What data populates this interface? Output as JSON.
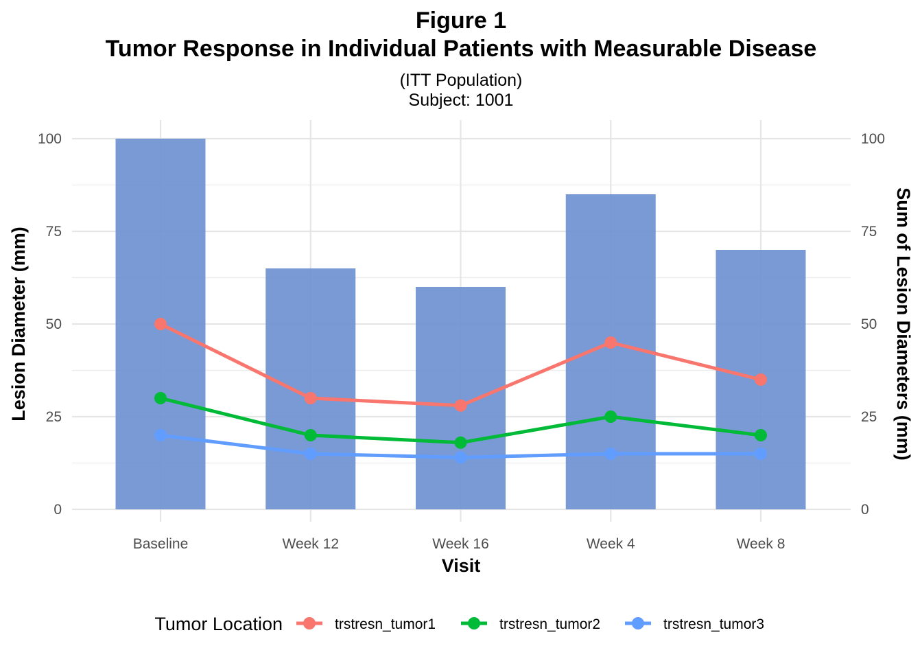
{
  "chart_data": {
    "type": "bar+line",
    "title": "Figure 1",
    "title_line2": "Tumor Response in Individual Patients with Measurable Disease",
    "subtitle": "(ITT Population)",
    "subtitle_line2": "Subject: 1001",
    "xlabel": "Visit",
    "ylabel": "Lesion Diameter (mm)",
    "ylabel_right": "Sum of Lesion Diameters (mm)",
    "categories": [
      "Baseline",
      "Week 12",
      "Week 16",
      "Week 4",
      "Week 8"
    ],
    "ylim": [
      0,
      100
    ],
    "yticks": [
      0,
      25,
      50,
      75,
      100
    ],
    "grid": true,
    "bars": {
      "name": "Sum of Lesion Diameters",
      "values": [
        100,
        65,
        60,
        85,
        70
      ],
      "color": "#6a8fd0"
    },
    "series": [
      {
        "name": "trstresn_tumor1",
        "values": [
          50,
          30,
          28,
          45,
          35
        ],
        "color": "#f8766d"
      },
      {
        "name": "trstresn_tumor2",
        "values": [
          30,
          20,
          18,
          25,
          20
        ],
        "color": "#00ba38"
      },
      {
        "name": "trstresn_tumor3",
        "values": [
          20,
          15,
          14,
          15,
          15
        ],
        "color": "#619cff"
      }
    ],
    "legend": {
      "title": "Tumor Location",
      "position": "bottom"
    }
  }
}
